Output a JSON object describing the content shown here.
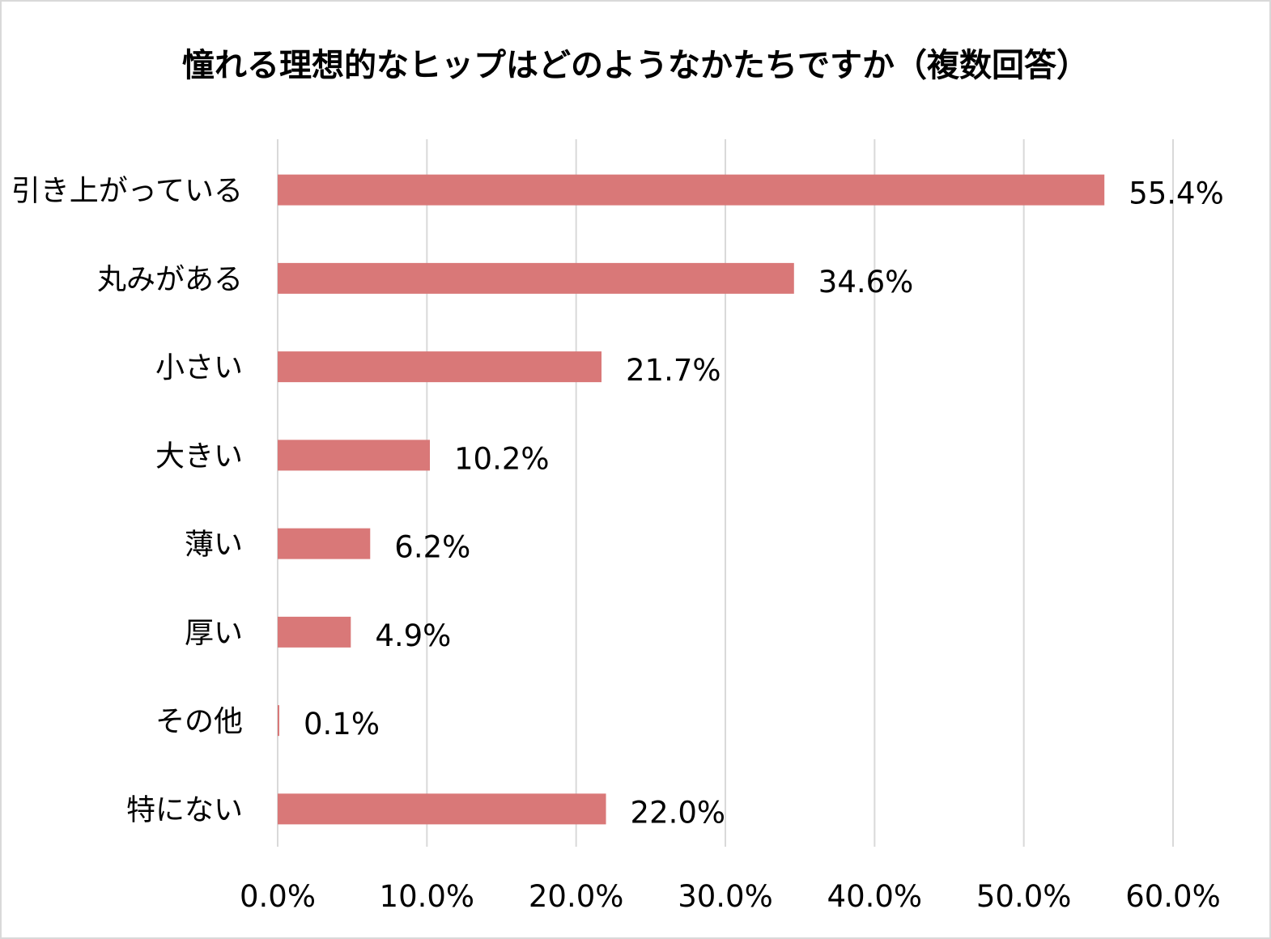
{
  "chart_data": {
    "type": "bar",
    "orientation": "horizontal",
    "title": "憧れる理想的なヒップはどのようなかたちですか（複数回答）",
    "categories": [
      "引き上がっている",
      "丸みがある",
      "小さい",
      "大きい",
      "薄い",
      "厚い",
      "その他",
      "特にない"
    ],
    "values": [
      55.4,
      34.6,
      21.7,
      10.2,
      6.2,
      4.9,
      0.1,
      22.0
    ],
    "value_labels": [
      "55.4%",
      "34.6%",
      "21.7%",
      "10.2%",
      "6.2%",
      "4.9%",
      "0.1%",
      "22.0%"
    ],
    "xlim": [
      0,
      60
    ],
    "x_ticks": [
      0,
      10,
      20,
      30,
      40,
      50,
      60
    ],
    "x_tick_labels": [
      "0.0%",
      "10.0%",
      "20.0%",
      "30.0%",
      "40.0%",
      "50.0%",
      "60.0%"
    ],
    "xlabel": "",
    "ylabel": "",
    "grid": "vertical",
    "legend": "none",
    "bar_color": "#d97878",
    "grid_color": "#d9d9d9"
  }
}
